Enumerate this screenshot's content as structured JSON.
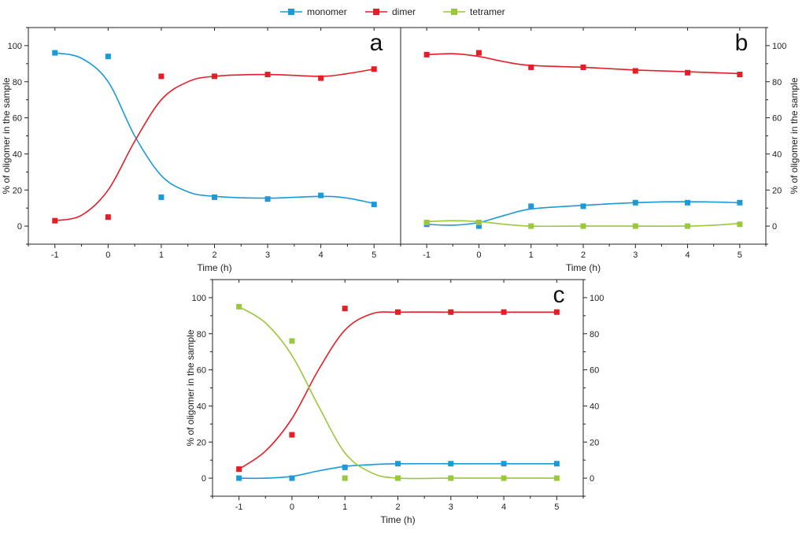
{
  "legend": [
    {
      "name": "monomer",
      "color": "#1a9ad6"
    },
    {
      "name": "dimer",
      "color": "#e41e26"
    },
    {
      "name": "tetramer",
      "color": "#9ac83c"
    }
  ],
  "chart_data": [
    {
      "id": "a",
      "type": "line",
      "panel_label": "a",
      "xlabel": "Time (h)",
      "ylabel": "% of oligomer in the sample",
      "x_ticks": [
        "-1",
        "0",
        "1",
        "2",
        "3",
        "4",
        "5"
      ],
      "y_ticks": [
        "0",
        "20",
        "40",
        "60",
        "80",
        "100"
      ],
      "right_y_ticks": [],
      "xlim": [
        -1.5,
        5.5
      ],
      "ylim": [
        -10,
        110
      ],
      "x": [
        -1,
        0,
        1,
        2,
        3,
        4,
        5
      ],
      "series": [
        {
          "name": "monomer",
          "color": "#1a9ad6",
          "points": [
            96,
            94,
            16,
            16,
            15,
            17,
            12
          ],
          "curve": [
            [
              -1,
              96
            ],
            [
              -0.5,
              93
            ],
            [
              0,
              80
            ],
            [
              0.5,
              50
            ],
            [
              1,
              28
            ],
            [
              1.5,
              19
            ],
            [
              2,
              16.5
            ],
            [
              3,
              15.5
            ],
            [
              4,
              16.5
            ],
            [
              4.5,
              15.5
            ],
            [
              5,
              12.5
            ]
          ]
        },
        {
          "name": "dimer",
          "color": "#e41e26",
          "points": [
            3,
            5,
            83,
            83,
            84,
            82,
            87
          ],
          "curve": [
            [
              -1,
              3
            ],
            [
              -0.5,
              6
            ],
            [
              0,
              20
            ],
            [
              0.5,
              47
            ],
            [
              1,
              70
            ],
            [
              1.5,
              80
            ],
            [
              2,
              83
            ],
            [
              3,
              84
            ],
            [
              4,
              83
            ],
            [
              4.5,
              84.5
            ],
            [
              5,
              87
            ]
          ]
        }
      ]
    },
    {
      "id": "b",
      "type": "line",
      "panel_label": "b",
      "xlabel": "Time (h)",
      "ylabel": "% of oligomer in the sample",
      "x_ticks": [
        "-1",
        "0",
        "1",
        "2",
        "3",
        "4",
        "5"
      ],
      "y_ticks": [],
      "right_y_ticks": [
        "0",
        "20",
        "40",
        "60",
        "80",
        "100"
      ],
      "xlim": [
        -1.5,
        5.5
      ],
      "ylim": [
        -10,
        110
      ],
      "x": [
        -1,
        0,
        1,
        2,
        3,
        4,
        5
      ],
      "series": [
        {
          "name": "monomer",
          "color": "#1a9ad6",
          "points": [
            1,
            0,
            11,
            11,
            13,
            13,
            13
          ],
          "curve": [
            [
              -1,
              1
            ],
            [
              -0.5,
              0.5
            ],
            [
              0,
              2
            ],
            [
              0.5,
              6
            ],
            [
              1,
              9.5
            ],
            [
              2,
              11.5
            ],
            [
              3,
              13
            ],
            [
              4,
              13.5
            ],
            [
              5,
              13
            ]
          ]
        },
        {
          "name": "dimer",
          "color": "#e41e26",
          "points": [
            95,
            96,
            88,
            88,
            86,
            85,
            84
          ],
          "curve": [
            [
              -1,
              95
            ],
            [
              -0.5,
              95.5
            ],
            [
              0,
              94
            ],
            [
              0.5,
              91
            ],
            [
              1,
              89
            ],
            [
              2,
              88
            ],
            [
              3,
              86.5
            ],
            [
              4,
              85.5
            ],
            [
              5,
              84.5
            ]
          ]
        },
        {
          "name": "tetramer",
          "color": "#9ac83c",
          "points": [
            2,
            2,
            0,
            0,
            0,
            0,
            1
          ],
          "curve": [
            [
              -1,
              2.5
            ],
            [
              -0.5,
              3
            ],
            [
              0,
              2.5
            ],
            [
              0.5,
              1
            ],
            [
              1,
              0
            ],
            [
              2,
              0
            ],
            [
              3,
              0
            ],
            [
              4,
              0
            ],
            [
              4.5,
              0.5
            ],
            [
              5,
              1.5
            ]
          ]
        }
      ]
    },
    {
      "id": "c",
      "type": "line",
      "panel_label": "c",
      "xlabel": "Time (h)",
      "ylabel": "% of oligomer in the sample",
      "x_ticks": [
        "-1",
        "0",
        "1",
        "2",
        "3",
        "4",
        "5"
      ],
      "y_ticks": [
        "0",
        "20",
        "40",
        "60",
        "80",
        "100"
      ],
      "right_y_ticks": [
        "0",
        "20",
        "40",
        "60",
        "80",
        "100"
      ],
      "xlim": [
        -1.5,
        5.5
      ],
      "ylim": [
        -10,
        110
      ],
      "x": [
        -1,
        0,
        1,
        2,
        3,
        4,
        5
      ],
      "series": [
        {
          "name": "monomer",
          "color": "#1a9ad6",
          "points": [
            0,
            0,
            6,
            8,
            8,
            8,
            8
          ],
          "curve": [
            [
              -1,
              0
            ],
            [
              -0.5,
              0
            ],
            [
              0,
              1
            ],
            [
              0.5,
              4
            ],
            [
              1,
              6.5
            ],
            [
              1.5,
              7.5
            ],
            [
              2,
              8
            ],
            [
              3,
              8
            ],
            [
              4,
              8
            ],
            [
              5,
              8
            ]
          ]
        },
        {
          "name": "dimer",
          "color": "#e41e26",
          "points": [
            5,
            24,
            94,
            92,
            92,
            92,
            92
          ],
          "curve": [
            [
              -1,
              5
            ],
            [
              -0.5,
              15
            ],
            [
              0,
              33
            ],
            [
              0.5,
              60
            ],
            [
              1,
              82
            ],
            [
              1.5,
              91
            ],
            [
              2,
              92
            ],
            [
              3,
              92
            ],
            [
              4,
              92
            ],
            [
              5,
              92
            ]
          ]
        },
        {
          "name": "tetramer",
          "color": "#9ac83c",
          "points": [
            95,
            76,
            0,
            0,
            0,
            0,
            0
          ],
          "curve": [
            [
              -1,
              95
            ],
            [
              -0.5,
              86
            ],
            [
              0,
              68
            ],
            [
              0.5,
              40
            ],
            [
              1,
              14
            ],
            [
              1.5,
              3
            ],
            [
              2,
              0
            ],
            [
              3,
              0
            ],
            [
              4,
              0
            ],
            [
              5,
              0
            ]
          ]
        }
      ]
    }
  ]
}
